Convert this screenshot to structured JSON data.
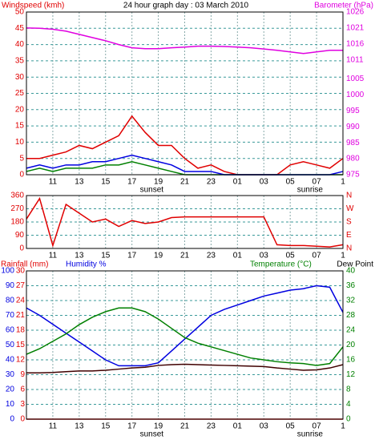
{
  "chart_data": [
    {
      "type": "line",
      "title": "24 hour graph day : 03 March 2010",
      "y_label": "Windspeed (kmh)",
      "y2_label": "Barometer (hPa)",
      "x": [
        0,
        1,
        2,
        3,
        4,
        5,
        6,
        7,
        8,
        9,
        10,
        11,
        12,
        13,
        14,
        15,
        16,
        17,
        18,
        19,
        20,
        21,
        22,
        23,
        24
      ],
      "xlim": [
        0,
        24
      ],
      "xticks": [
        {
          "value": 2,
          "label": "11"
        },
        {
          "value": 4,
          "label": "13"
        },
        {
          "value": 6,
          "label": "15"
        },
        {
          "value": 8,
          "label": "17"
        },
        {
          "value": 10,
          "label": "19"
        },
        {
          "value": 12,
          "label": "21"
        },
        {
          "value": 14,
          "label": "23"
        },
        {
          "value": 16,
          "label": "01"
        },
        {
          "value": 18,
          "label": "03"
        },
        {
          "value": 20,
          "label": "05"
        },
        {
          "value": 22,
          "label": "07"
        },
        {
          "value": 24,
          "label": "1"
        }
      ],
      "ylim": [
        0,
        50
      ],
      "yticks": [
        0,
        5,
        10,
        15,
        20,
        25,
        30,
        35,
        40,
        45,
        50
      ],
      "ycolor": "#e00000",
      "y2lim": [
        975,
        1026
      ],
      "y2ticks": [
        975,
        980,
        985,
        990,
        995,
        1000,
        1005,
        1011,
        1016,
        1021,
        1026
      ],
      "y2color": "#e000e0",
      "grid": true,
      "series": [
        {
          "color": "#e00000",
          "values": [
            5,
            5,
            6,
            7,
            9,
            8,
            10,
            12,
            18,
            13,
            9,
            9,
            5,
            2,
            3,
            1,
            0,
            0,
            0,
            0,
            3,
            4,
            3,
            2,
            5
          ]
        },
        {
          "color": "#008000",
          "values": [
            1,
            2,
            1,
            2,
            2,
            2,
            3,
            3,
            4,
            3,
            2,
            1,
            0,
            0,
            0,
            0,
            0,
            0,
            0,
            0,
            0,
            0,
            0,
            0,
            0
          ]
        },
        {
          "color": "#0000e0",
          "values": [
            2,
            3,
            2,
            3,
            3,
            4,
            4,
            5,
            6,
            5,
            4,
            3,
            1,
            1,
            1,
            0,
            0,
            0,
            0,
            0,
            0,
            0,
            0,
            0,
            1
          ]
        },
        {
          "color": "#e000e0",
          "axis": "y2",
          "values": [
            1021,
            1020.9,
            1020.6,
            1020,
            1019,
            1018,
            1017,
            1015.8,
            1014.8,
            1014.5,
            1014.5,
            1014.8,
            1015,
            1015.3,
            1015.3,
            1015.2,
            1015,
            1014.8,
            1014.4,
            1014,
            1013.5,
            1013,
            1013.5,
            1014,
            1014
          ]
        }
      ],
      "annotations": [
        {
          "text": "sunset",
          "x": 9.5
        },
        {
          "text": "sunrise",
          "x": 21.5
        }
      ]
    },
    {
      "type": "line",
      "x": [
        0,
        1,
        2,
        3,
        4,
        5,
        6,
        7,
        8,
        9,
        10,
        11,
        12,
        13,
        14,
        15,
        16,
        17,
        18,
        19,
        20,
        21,
        22,
        23,
        24
      ],
      "xlim": [
        0,
        24
      ],
      "xticks": [
        {
          "value": 2,
          "label": "11"
        },
        {
          "value": 4,
          "label": "13"
        },
        {
          "value": 6,
          "label": "15"
        },
        {
          "value": 8,
          "label": "17"
        },
        {
          "value": 10,
          "label": "19"
        },
        {
          "value": 12,
          "label": "21"
        },
        {
          "value": 14,
          "label": "23"
        },
        {
          "value": 16,
          "label": "01"
        },
        {
          "value": 18,
          "label": "03"
        },
        {
          "value": 20,
          "label": "05"
        },
        {
          "value": 22,
          "label": "07"
        },
        {
          "value": 24,
          "label": "1"
        }
      ],
      "ylim": [
        0,
        360
      ],
      "yticks": [
        0,
        90,
        180,
        270,
        360
      ],
      "ycolor": "#e00000",
      "y2lim": [
        0,
        360
      ],
      "y2ticks": [
        {
          "value": 0,
          "label": "N"
        },
        {
          "value": 90,
          "label": "E"
        },
        {
          "value": 180,
          "label": "S"
        },
        {
          "value": 270,
          "label": "W"
        },
        {
          "value": 360,
          "label": "N"
        }
      ],
      "y2color": "#e00000",
      "grid": true,
      "series": [
        {
          "color": "#e00000",
          "values": [
            200,
            340,
            20,
            300,
            240,
            180,
            200,
            150,
            190,
            170,
            180,
            210,
            215,
            215,
            215,
            215,
            215,
            215,
            215,
            25,
            20,
            20,
            15,
            10,
            25
          ]
        }
      ]
    },
    {
      "type": "line",
      "y3_label": "Rainfall (mm)",
      "y_label": "Humidity %",
      "y2_label": "Temperature (°C)",
      "y2_label_2": "Dew Point",
      "x": [
        0,
        1,
        2,
        3,
        4,
        5,
        6,
        7,
        8,
        9,
        10,
        11,
        12,
        13,
        14,
        15,
        16,
        17,
        18,
        19,
        20,
        21,
        22,
        23,
        24
      ],
      "xlim": [
        0,
        24
      ],
      "xticks": [
        {
          "value": 2,
          "label": "11"
        },
        {
          "value": 4,
          "label": "13"
        },
        {
          "value": 6,
          "label": "15"
        },
        {
          "value": 8,
          "label": "17"
        },
        {
          "value": 10,
          "label": "19"
        },
        {
          "value": 12,
          "label": "21"
        },
        {
          "value": 14,
          "label": "23"
        },
        {
          "value": 16,
          "label": "01"
        },
        {
          "value": 18,
          "label": "03"
        },
        {
          "value": 20,
          "label": "05"
        },
        {
          "value": 22,
          "label": "07"
        },
        {
          "value": 24,
          "label": "1"
        }
      ],
      "ylim": [
        0,
        100
      ],
      "yticks": [
        0,
        10,
        20,
        30,
        40,
        50,
        60,
        70,
        80,
        90,
        100
      ],
      "ycolor": "#0000e0",
      "y3lim": [
        0,
        30
      ],
      "y3ticks": [
        0,
        3,
        6,
        9,
        12,
        15,
        18,
        21,
        24,
        27,
        30
      ],
      "y3color": "#e00000",
      "y2lim": [
        0,
        40
      ],
      "y2ticks": [
        0,
        4,
        8,
        12,
        16,
        20,
        24,
        28,
        32,
        36,
        40
      ],
      "y2color": "#008000",
      "grid": true,
      "series": [
        {
          "color": "#e00000",
          "axis": "y3",
          "values": [
            0,
            0,
            0,
            0,
            0,
            0,
            0,
            0,
            0,
            0,
            0,
            0,
            0,
            0,
            0,
            0,
            0,
            0,
            0,
            0,
            0,
            0,
            0,
            0,
            0
          ]
        },
        {
          "color": "#0000e0",
          "values": [
            75,
            70,
            64,
            58,
            52,
            46,
            40,
            36,
            36,
            36,
            38,
            46,
            54,
            62,
            70,
            74,
            77,
            80,
            83,
            85,
            87,
            88,
            90,
            89,
            72
          ]
        },
        {
          "color": "#008000",
          "axis": "y2",
          "values": [
            17.5,
            19,
            21,
            23,
            25.5,
            27.5,
            29,
            30,
            30,
            29,
            27,
            24.5,
            22,
            20.5,
            19.5,
            18.5,
            17.5,
            16.5,
            16,
            15.5,
            15.2,
            15,
            14.5,
            15,
            19.5
          ]
        },
        {
          "color": "#400000",
          "axis": "y2",
          "values": [
            12.5,
            12.5,
            12.6,
            12.8,
            13,
            13,
            13.2,
            13.5,
            13.8,
            14,
            14.5,
            14.7,
            14.8,
            14.7,
            14.6,
            14.5,
            14.4,
            14.3,
            14.2,
            13.8,
            13.5,
            13.2,
            13.3,
            13.8,
            14.7
          ]
        }
      ],
      "annotations": [
        {
          "text": "sunset",
          "x": 9.5
        },
        {
          "text": "sunrise",
          "x": 21.5
        }
      ]
    }
  ]
}
